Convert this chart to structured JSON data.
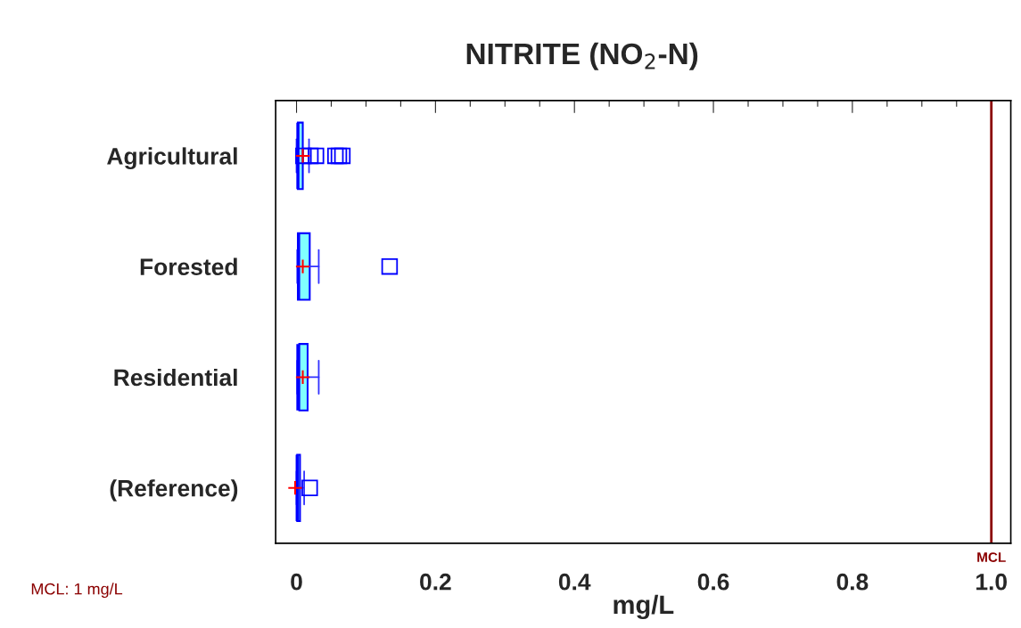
{
  "chart_data": {
    "type": "box",
    "title": "NITRITE (NO$_{2}$-N)",
    "xlabel": "mg/L",
    "orientation": "horizontal",
    "categories": [
      "Agricultural",
      "Forested",
      "Residential",
      "(Reference)"
    ],
    "series": [
      {
        "color": "#80ffff",
        "boxes": [
          {
            "low": 0.0,
            "q1": 0.002,
            "median": 0.002,
            "q3": 0.009,
            "high": 0.018,
            "mean": 0.009,
            "outliers": [
              0.01,
              0.02,
              0.028,
              0.056,
              0.061,
              0.066
            ]
          },
          {
            "low": 0.001,
            "q1": 0.002,
            "median": 0.003,
            "q3": 0.019,
            "high": 0.032,
            "mean": 0.009,
            "outliers": [
              0.134
            ]
          },
          {
            "low": 0.001,
            "q1": 0.004,
            "median": 0.002,
            "q3": 0.016,
            "high": 0.032,
            "mean": 0.009
          },
          {
            "low": 0.0,
            "q1": 0.001,
            "median": 0.001,
            "q3": 0.005,
            "high": 0.011,
            "mean": -0.002,
            "outliers": [
              0.019
            ]
          }
        ]
      }
    ],
    "xlim": [
      -0.03,
      1.028
    ],
    "xticks": [
      0,
      {
        "value": 0.05,
        "label": null
      },
      {
        "value": 0.1,
        "label": null
      },
      {
        "value": 0.15,
        "label": null
      },
      {
        "value": 0.2,
        "label": "0.2"
      },
      {
        "value": 0.25,
        "label": null
      },
      {
        "value": 0.3,
        "label": null
      },
      {
        "value": 0.35,
        "label": null
      },
      {
        "value": 0.4,
        "label": "0.4"
      },
      {
        "value": 0.45,
        "label": null
      },
      {
        "value": 0.5,
        "label": null
      },
      {
        "value": 0.55,
        "label": null
      },
      {
        "value": 0.6,
        "label": "0.6"
      },
      {
        "value": 0.65,
        "label": null
      },
      {
        "value": 0.7,
        "label": null
      },
      {
        "value": 0.75,
        "label": null
      },
      {
        "value": 0.8,
        "label": "0.8"
      },
      {
        "value": 0.85,
        "label": null
      },
      {
        "value": 0.9,
        "label": null
      },
      {
        "value": 0.95,
        "label": null
      },
      {
        "value": 1.0,
        "label": "1.0"
      }
    ],
    "ref_lines": [
      {
        "axis": "x",
        "value": 1.0,
        "label": "MCL",
        "color": "#8b0000"
      }
    ],
    "annotations": [
      "MCL: 1 mg/L"
    ],
    "grid": false,
    "legend": false
  }
}
